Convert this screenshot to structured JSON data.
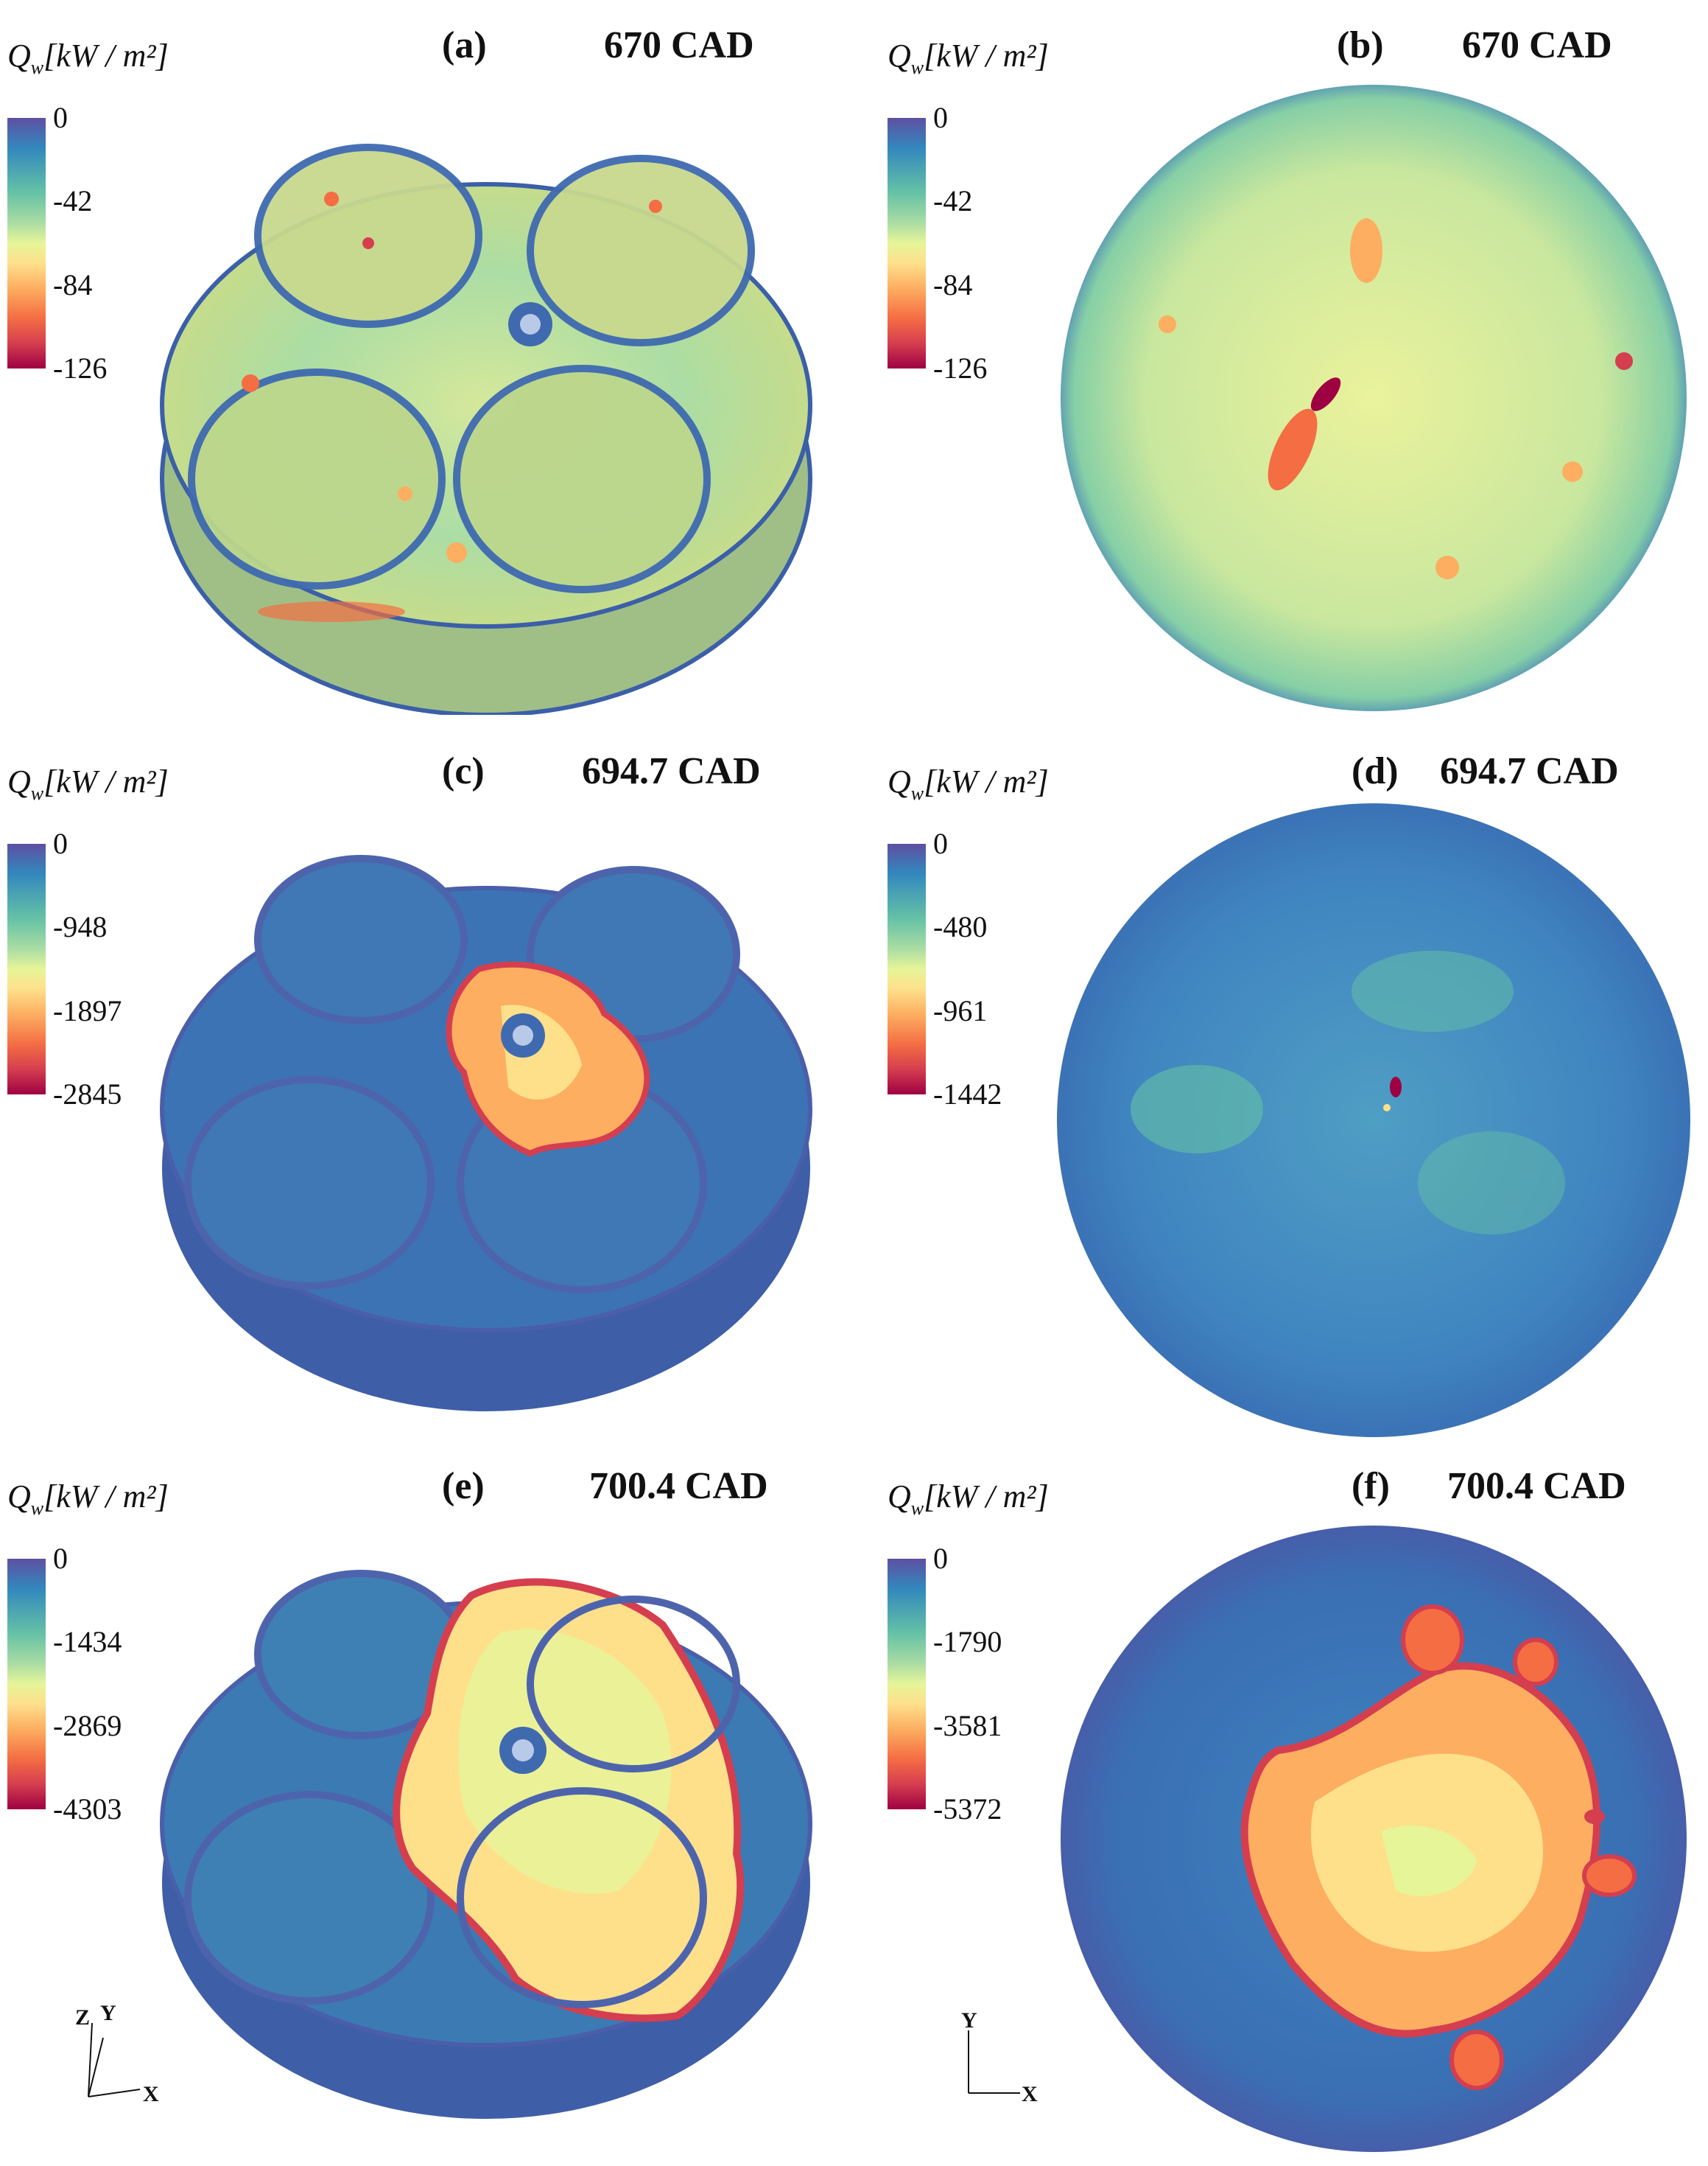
{
  "panels": [
    {
      "tag": "(a)",
      "cad": "670 CAD",
      "cbar_title": "Q",
      "cbar_sub": "w",
      "cbar_unit": "[kW / m²]",
      "ticks": [
        "0",
        "-42",
        "-84",
        "-126"
      ],
      "view": "3D"
    },
    {
      "tag": "(b)",
      "cad": "670 CAD",
      "cbar_title": "Q",
      "cbar_sub": "w",
      "cbar_unit": "[kW / m²]",
      "ticks": [
        "0",
        "-42",
        "-84",
        "-126"
      ],
      "view": "top"
    },
    {
      "tag": "(c)",
      "cad": "694.7 CAD",
      "cbar_title": "Q",
      "cbar_sub": "w",
      "cbar_unit": "[kW / m²]",
      "ticks": [
        "0",
        "-948",
        "-1897",
        "-2845"
      ],
      "view": "3D"
    },
    {
      "tag": "(d)",
      "cad": "694.7 CAD",
      "cbar_title": "Q",
      "cbar_sub": "w",
      "cbar_unit": "[kW / m²]",
      "ticks": [
        "0",
        "-480",
        "-961",
        "-1442"
      ],
      "view": "top"
    },
    {
      "tag": "(e)",
      "cad": "700.4 CAD",
      "cbar_title": "Q",
      "cbar_sub": "w",
      "cbar_unit": "[kW / m²]",
      "ticks": [
        "0",
        "-1434",
        "-2869",
        "-4303"
      ],
      "view": "3D"
    },
    {
      "tag": "(f)",
      "cad": "700.4 CAD",
      "cbar_title": "Q",
      "cbar_sub": "w",
      "cbar_unit": "[kW / m²]",
      "ticks": [
        "0",
        "-1790",
        "-3581",
        "-5372"
      ],
      "view": "top"
    }
  ],
  "axes_3d": {
    "z": "Z",
    "y": "Y",
    "x": "X"
  },
  "axes_top": {
    "y": "Y",
    "x": "X"
  },
  "colormap": [
    "#5e4fa2",
    "#3288bd",
    "#66c2a5",
    "#abdda4",
    "#e6f598",
    "#fee08b",
    "#fdae61",
    "#f46d43",
    "#d53e4f",
    "#9e0142"
  ]
}
